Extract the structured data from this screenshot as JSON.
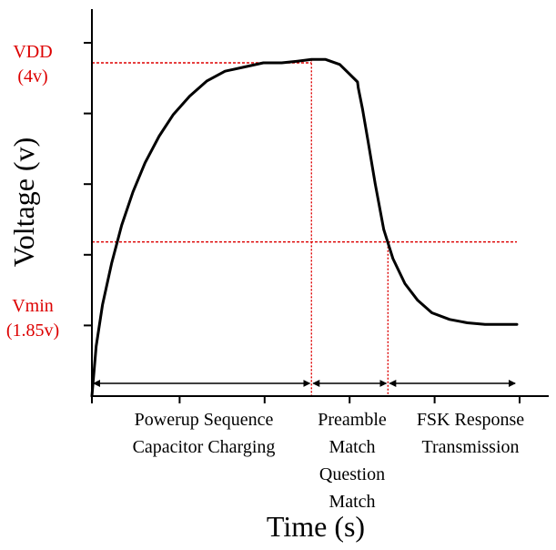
{
  "chart_data": {
    "type": "line",
    "title": "",
    "xlabel": "Time (s)",
    "ylabel": "Voltage (v)",
    "ylim": [
      0,
      5
    ],
    "xlim": [
      0,
      6
    ],
    "grid": false,
    "series": [
      {
        "x": [
          0,
          0.06,
          0.15,
          0.28,
          0.42,
          0.58,
          0.75,
          0.95,
          1.15,
          1.38,
          1.62,
          1.88,
          2.15,
          2.42,
          2.68,
          2.9,
          3.1,
          3.3,
          3.5,
          3.75,
          3.76,
          3.82,
          3.9,
          4.0,
          4.12,
          4.25,
          4.42,
          4.6,
          4.8,
          5.05,
          5.3,
          5.55,
          5.8,
          6.0
        ],
        "y": [
          0.0,
          0.6,
          1.1,
          1.6,
          2.05,
          2.45,
          2.8,
          3.12,
          3.38,
          3.6,
          3.78,
          3.9,
          3.95,
          4.0,
          4.0,
          4.02,
          4.04,
          4.04,
          3.98,
          3.77,
          3.7,
          3.45,
          3.05,
          2.55,
          2.0,
          1.65,
          1.35,
          1.15,
          1.0,
          0.92,
          0.88,
          0.86,
          0.86,
          0.86
        ]
      }
    ],
    "reference_lines": [
      {
        "label": "VDD",
        "sublabel": "(4v)",
        "y": 4.0
      },
      {
        "label": "Vmin",
        "sublabel": "(1.85v)",
        "y": 1.85
      }
    ],
    "phases": [
      {
        "lines": [
          "Powerup Sequence",
          "Capacitor Charging"
        ],
        "x_start": 0,
        "x_end": 3.1
      },
      {
        "lines": [
          "Preamble",
          "Match",
          "Question",
          "Match"
        ],
        "x_start": 3.1,
        "x_end": 4.18
      },
      {
        "lines": [
          "FSK Response",
          "Transmission"
        ],
        "x_start": 4.18,
        "x_end": 6.0
      }
    ],
    "x_ticks": [
      0,
      1.2,
      2.4,
      3.6,
      4.8,
      6.0
    ],
    "y_ticks": [
      1,
      2,
      3,
      4,
      5
    ],
    "colors": {
      "curve": "#000000",
      "reference": "#dd0000",
      "axis": "#000000"
    }
  }
}
